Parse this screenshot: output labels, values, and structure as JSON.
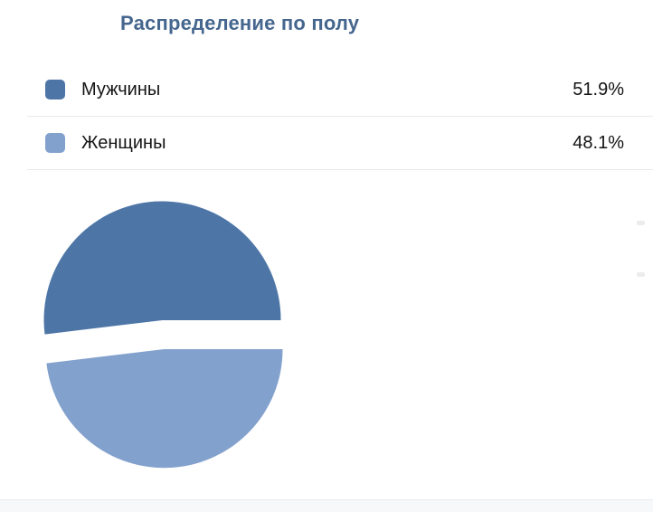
{
  "title": "Распределение по полу",
  "legend": {
    "rows": [
      {
        "label": "Мужчины",
        "value": "51.9%"
      },
      {
        "label": "Женщины",
        "value": "48.1%"
      }
    ]
  },
  "chart_data": {
    "type": "pie",
    "title": "Распределение по полу",
    "categories": [
      "Мужчины",
      "Женщины"
    ],
    "values": [
      51.9,
      48.1
    ],
    "unit": "%",
    "colors": [
      "#4d76a7",
      "#83a1cd"
    ],
    "start_angle_deg": 0,
    "direction": "counterclockwise",
    "exploded": true,
    "legend_position": "top",
    "labels_shown": false
  },
  "colors": {
    "title": "#45668e",
    "text": "#141414",
    "divider": "#e7e8ec",
    "footer_bg": "#f7f8fa",
    "background": "#ffffff"
  }
}
